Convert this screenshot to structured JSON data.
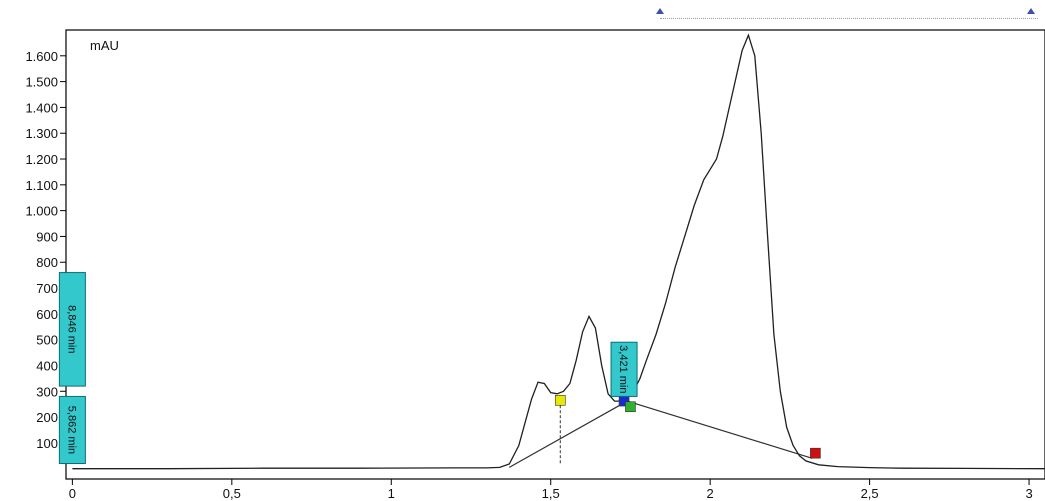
{
  "chart_data": {
    "type": "line",
    "title": "",
    "ylabel": "mAU",
    "xlabel": "",
    "xlim": [
      -0.02,
      3.05
    ],
    "ylim": [
      -40,
      1700
    ],
    "x_ticks": [
      {
        "value": 0,
        "label": "0"
      },
      {
        "value": 0.5,
        "label": "0,5"
      },
      {
        "value": 1,
        "label": "1"
      },
      {
        "value": 1.5,
        "label": "1,5"
      },
      {
        "value": 2,
        "label": "2"
      },
      {
        "value": 2.5,
        "label": "2,5"
      },
      {
        "value": 3,
        "label": "3"
      }
    ],
    "y_ticks": [
      {
        "value": 100,
        "label": "100"
      },
      {
        "value": 200,
        "label": "200"
      },
      {
        "value": 300,
        "label": "300"
      },
      {
        "value": 400,
        "label": "400"
      },
      {
        "value": 500,
        "label": "500"
      },
      {
        "value": 600,
        "label": "600"
      },
      {
        "value": 700,
        "label": "700"
      },
      {
        "value": 800,
        "label": "800"
      },
      {
        "value": 900,
        "label": "900"
      },
      {
        "value": 1000,
        "label": "1.000"
      },
      {
        "value": 1100,
        "label": "1.100"
      },
      {
        "value": 1200,
        "label": "1.200"
      },
      {
        "value": 1300,
        "label": "1.300"
      },
      {
        "value": 1400,
        "label": "1.400"
      },
      {
        "value": 1500,
        "label": "1.500"
      },
      {
        "value": 1600,
        "label": "1.600"
      }
    ],
    "grid": false,
    "series": [
      {
        "x": [
          0.0,
          0.3,
          0.6,
          0.9,
          1.2,
          1.3,
          1.34,
          1.37,
          1.4,
          1.42,
          1.44,
          1.46,
          1.48,
          1.5,
          1.52,
          1.54,
          1.56,
          1.58,
          1.6,
          1.62,
          1.64,
          1.66,
          1.68,
          1.7,
          1.72,
          1.74,
          1.76,
          1.78,
          1.8,
          1.83,
          1.86,
          1.89,
          1.92,
          1.95,
          1.98,
          2.0,
          2.02,
          2.04,
          2.06,
          2.08,
          2.1,
          2.12,
          2.14,
          2.16,
          2.18,
          2.2,
          2.22,
          2.24,
          2.26,
          2.28,
          2.3,
          2.34,
          2.4,
          2.5,
          2.6,
          2.8,
          3.05
        ],
        "y": [
          0,
          0,
          2,
          2,
          3,
          3,
          5,
          18,
          90,
          180,
          270,
          335,
          330,
          295,
          290,
          300,
          330,
          420,
          530,
          590,
          545,
          400,
          290,
          262,
          262,
          275,
          300,
          350,
          420,
          520,
          640,
          780,
          900,
          1020,
          1120,
          1160,
          1200,
          1290,
          1400,
          1510,
          1620,
          1680,
          1600,
          1300,
          900,
          520,
          300,
          160,
          90,
          50,
          30,
          15,
          8,
          4,
          2,
          1,
          0
        ]
      }
    ],
    "baselines": [
      {
        "x": [
          1.37,
          1.74
        ],
        "y": [
          5,
          262
        ]
      },
      {
        "x": [
          1.74,
          2.32
        ],
        "y": [
          262,
          40
        ]
      }
    ],
    "peak_markers": [
      {
        "x": 1.53,
        "y": 265,
        "color": "#e8e800",
        "drop_to": 20
      },
      {
        "x": 1.73,
        "y": 262,
        "color": "#1a2bd0"
      },
      {
        "x": 1.75,
        "y": 240,
        "color": "#2fb02f"
      },
      {
        "x": 2.33,
        "y": 60,
        "color": "#d01010"
      }
    ],
    "peak_labels": [
      {
        "text": "8,846 min",
        "ymin": 320,
        "ymax": 760,
        "x": 0
      },
      {
        "text": "5,862 min",
        "ymin": 20,
        "ymax": 280,
        "x": 0
      },
      {
        "text": "3,421 min",
        "ymin": 280,
        "ymax": 490,
        "x": 1.73
      }
    ]
  },
  "colors": {
    "line": "#202020",
    "label_fill": "#32c8cc",
    "label_border": "#0a6f73",
    "axis": "#000000"
  }
}
